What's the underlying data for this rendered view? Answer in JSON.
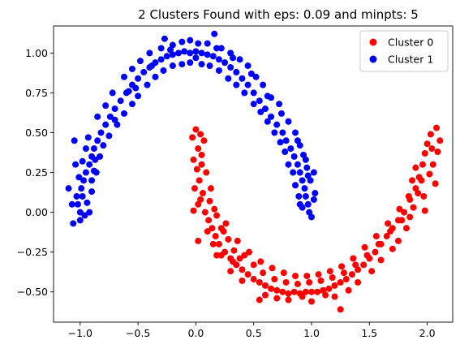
{
  "chart_data": {
    "type": "scatter",
    "title": "2 Clusters Found with eps: 0.09 and minpts: 5",
    "xlabel": "",
    "ylabel": "",
    "xlim": [
      -1.23,
      2.22
    ],
    "ylim": [
      -0.69,
      1.17
    ],
    "xticks": [
      -1.0,
      -0.5,
      0.0,
      0.5,
      1.0,
      1.5,
      2.0
    ],
    "xtick_labels": [
      "−1.0",
      "−0.5",
      "0.0",
      "0.5",
      "1.0",
      "1.5",
      "2.0"
    ],
    "yticks": [
      -0.5,
      -0.25,
      0.0,
      0.25,
      0.5,
      0.75,
      1.0
    ],
    "ytick_labels": [
      "−0.50",
      "−0.25",
      "0.00",
      "0.25",
      "0.50",
      "0.75",
      "1.00"
    ],
    "grid": false,
    "legend_position": "top-right",
    "series": [
      {
        "name": "Cluster 0",
        "color": "#ff0000",
        "points": [
          [
            0.0,
            0.52
          ],
          [
            0.04,
            0.49
          ],
          [
            0.02,
            0.4
          ],
          [
            -0.02,
            0.33
          ],
          [
            0.05,
            0.3
          ],
          [
            0.03,
            0.2
          ],
          [
            0.06,
            0.12
          ],
          [
            0.02,
            0.05
          ],
          [
            0.08,
            0.0
          ],
          [
            0.11,
            -0.05
          ],
          [
            0.14,
            -0.1
          ],
          [
            0.17,
            -0.15
          ],
          [
            0.2,
            -0.2
          ],
          [
            0.25,
            -0.25
          ],
          [
            0.3,
            -0.29
          ],
          [
            0.35,
            -0.33
          ],
          [
            0.4,
            -0.36
          ],
          [
            0.45,
            -0.39
          ],
          [
            0.5,
            -0.42
          ],
          [
            0.55,
            -0.44
          ],
          [
            0.6,
            -0.46
          ],
          [
            0.65,
            -0.48
          ],
          [
            0.7,
            -0.49
          ],
          [
            0.75,
            -0.5
          ],
          [
            0.8,
            -0.51
          ],
          [
            0.85,
            -0.5
          ],
          [
            0.9,
            -0.51
          ],
          [
            0.95,
            -0.5
          ],
          [
            1.0,
            -0.5
          ],
          [
            1.05,
            -0.5
          ],
          [
            1.1,
            -0.49
          ],
          [
            1.15,
            -0.48
          ],
          [
            1.2,
            -0.46
          ],
          [
            1.25,
            -0.44
          ],
          [
            1.3,
            -0.42
          ],
          [
            1.35,
            -0.39
          ],
          [
            1.4,
            -0.36
          ],
          [
            1.45,
            -0.33
          ],
          [
            1.5,
            -0.29
          ],
          [
            1.55,
            -0.25
          ],
          [
            1.6,
            -0.2
          ],
          [
            1.65,
            -0.15
          ],
          [
            1.7,
            -0.1
          ],
          [
            1.75,
            -0.05
          ],
          [
            1.8,
            0.0
          ],
          [
            1.85,
            0.08
          ],
          [
            1.9,
            0.15
          ],
          [
            1.93,
            0.22
          ],
          [
            1.96,
            0.3
          ],
          [
            1.98,
            0.37
          ],
          [
            2.0,
            0.43
          ],
          [
            2.03,
            0.49
          ],
          [
            2.08,
            0.53
          ],
          [
            2.11,
            0.45
          ],
          [
            2.05,
            0.3
          ],
          [
            0.07,
            0.45
          ],
          [
            -0.03,
            0.47
          ],
          [
            0.09,
            0.25
          ],
          [
            -0.01,
            0.15
          ],
          [
            0.12,
            0.07
          ],
          [
            0.18,
            -0.02
          ],
          [
            0.22,
            -0.1
          ],
          [
            0.28,
            -0.17
          ],
          [
            0.33,
            -0.24
          ],
          [
            0.42,
            -0.27
          ],
          [
            0.5,
            -0.33
          ],
          [
            0.58,
            -0.38
          ],
          [
            0.68,
            -0.42
          ],
          [
            0.78,
            -0.44
          ],
          [
            0.88,
            -0.45
          ],
          [
            0.98,
            -0.44
          ],
          [
            1.08,
            -0.43
          ],
          [
            1.18,
            -0.41
          ],
          [
            1.28,
            -0.38
          ],
          [
            1.38,
            -0.33
          ],
          [
            1.48,
            -0.27
          ],
          [
            1.58,
            -0.2
          ],
          [
            1.68,
            -0.12
          ],
          [
            1.78,
            -0.05
          ],
          [
            1.88,
            0.03
          ],
          [
            1.92,
            0.12
          ],
          [
            1.95,
            0.2
          ],
          [
            2.02,
            0.24
          ],
          [
            2.07,
            0.18
          ],
          [
            2.09,
            0.38
          ],
          [
            0.15,
            -0.2
          ],
          [
            0.1,
            -0.12
          ],
          [
            0.22,
            -0.27
          ],
          [
            0.4,
            -0.43
          ],
          [
            0.6,
            -0.52
          ],
          [
            0.8,
            -0.55
          ],
          [
            1.0,
            -0.56
          ],
          [
            1.2,
            -0.53
          ],
          [
            1.25,
            -0.61
          ],
          [
            1.4,
            -0.44
          ],
          [
            1.6,
            -0.3
          ],
          [
            1.75,
            -0.18
          ],
          [
            1.82,
            -0.1
          ],
          [
            0.55,
            -0.55
          ],
          [
            0.3,
            -0.37
          ],
          [
            0.05,
            0.36
          ],
          [
            0.01,
            0.27
          ],
          [
            0.13,
            0.15
          ],
          [
            0.04,
            0.08
          ],
          [
            -0.02,
            0.01
          ],
          [
            0.16,
            0.02
          ],
          [
            0.26,
            -0.07
          ],
          [
            0.36,
            -0.18
          ],
          [
            0.46,
            -0.25
          ],
          [
            0.56,
            -0.31
          ],
          [
            0.66,
            -0.35
          ],
          [
            0.76,
            -0.38
          ],
          [
            0.86,
            -0.4
          ],
          [
            0.96,
            -0.4
          ],
          [
            1.06,
            -0.39
          ],
          [
            1.16,
            -0.37
          ],
          [
            1.26,
            -0.34
          ],
          [
            1.36,
            -0.29
          ],
          [
            1.46,
            -0.22
          ],
          [
            1.56,
            -0.15
          ],
          [
            1.66,
            -0.07
          ],
          [
            1.76,
            0.02
          ],
          [
            1.84,
            0.1
          ],
          [
            1.87,
            0.2
          ],
          [
            1.9,
            0.28
          ],
          [
            1.97,
            0.1
          ],
          [
            2.04,
            0.4
          ],
          [
            0.18,
            -0.27
          ],
          [
            0.02,
            -0.18
          ],
          [
            0.38,
            -0.29
          ],
          [
            0.7,
            -0.54
          ],
          [
            0.92,
            -0.53
          ],
          [
            1.12,
            -0.52
          ],
          [
            1.32,
            -0.49
          ],
          [
            1.52,
            -0.37
          ],
          [
            1.7,
            -0.23
          ],
          [
            1.85,
            -0.03
          ],
          [
            1.98,
            0.01
          ],
          [
            0.24,
            -0.12
          ],
          [
            0.32,
            -0.31
          ]
        ]
      },
      {
        "name": "Cluster 1",
        "color": "#0000ff",
        "points": [
          [
            -1.0,
            0.0
          ],
          [
            -1.02,
            0.05
          ],
          [
            -0.98,
            0.1
          ],
          [
            -0.99,
            0.15
          ],
          [
            -0.97,
            0.2
          ],
          [
            -0.95,
            0.25
          ],
          [
            -0.92,
            0.3
          ],
          [
            -0.9,
            0.35
          ],
          [
            -0.88,
            0.4
          ],
          [
            -0.85,
            0.45
          ],
          [
            -0.82,
            0.5
          ],
          [
            -0.78,
            0.55
          ],
          [
            -0.74,
            0.6
          ],
          [
            -0.7,
            0.65
          ],
          [
            -0.65,
            0.7
          ],
          [
            -0.6,
            0.75
          ],
          [
            -0.55,
            0.8
          ],
          [
            -0.5,
            0.84
          ],
          [
            -0.45,
            0.88
          ],
          [
            -0.4,
            0.91
          ],
          [
            -0.35,
            0.94
          ],
          [
            -0.3,
            0.96
          ],
          [
            -0.25,
            0.98
          ],
          [
            -0.2,
            0.99
          ],
          [
            -0.15,
            1.0
          ],
          [
            -0.1,
            1.01
          ],
          [
            -0.05,
            1.0
          ],
          [
            0.0,
            1.01
          ],
          [
            0.05,
            1.0
          ],
          [
            0.1,
            0.99
          ],
          [
            0.15,
            0.98
          ],
          [
            0.2,
            0.96
          ],
          [
            0.25,
            0.94
          ],
          [
            0.3,
            0.91
          ],
          [
            0.35,
            0.88
          ],
          [
            0.4,
            0.84
          ],
          [
            0.45,
            0.8
          ],
          [
            0.5,
            0.75
          ],
          [
            0.55,
            0.7
          ],
          [
            0.6,
            0.65
          ],
          [
            0.65,
            0.6
          ],
          [
            0.7,
            0.55
          ],
          [
            0.75,
            0.5
          ],
          [
            0.78,
            0.45
          ],
          [
            0.82,
            0.4
          ],
          [
            0.85,
            0.35
          ],
          [
            0.88,
            0.3
          ],
          [
            0.9,
            0.25
          ],
          [
            0.92,
            0.2
          ],
          [
            0.94,
            0.15
          ],
          [
            0.95,
            0.1
          ],
          [
            0.97,
            0.05
          ],
          [
            0.98,
            0.0
          ],
          [
            1.0,
            -0.03
          ],
          [
            1.03,
            0.12
          ],
          [
            -1.05,
            0.45
          ],
          [
            -1.1,
            0.15
          ],
          [
            -1.06,
            -0.07
          ],
          [
            -0.96,
            -0.02
          ],
          [
            -1.04,
            0.3
          ],
          [
            -0.93,
            0.47
          ],
          [
            -0.85,
            0.6
          ],
          [
            -0.78,
            0.67
          ],
          [
            -0.72,
            0.75
          ],
          [
            -0.62,
            0.85
          ],
          [
            -0.55,
            0.9
          ],
          [
            -0.48,
            0.95
          ],
          [
            -0.4,
            1.0
          ],
          [
            -0.3,
            1.03
          ],
          [
            -0.27,
            1.09
          ],
          [
            -0.2,
            1.05
          ],
          [
            -0.12,
            1.07
          ],
          [
            -0.05,
            1.08
          ],
          [
            0.02,
            1.06
          ],
          [
            0.1,
            1.06
          ],
          [
            0.16,
            1.12
          ],
          [
            0.22,
            1.03
          ],
          [
            0.3,
            1.0
          ],
          [
            0.38,
            0.96
          ],
          [
            0.45,
            0.92
          ],
          [
            0.52,
            0.85
          ],
          [
            0.58,
            0.8
          ],
          [
            0.65,
            0.72
          ],
          [
            0.72,
            0.68
          ],
          [
            0.8,
            0.57
          ],
          [
            0.86,
            0.5
          ],
          [
            0.9,
            0.42
          ],
          [
            0.95,
            0.33
          ],
          [
            0.97,
            0.23
          ],
          [
            1.02,
            0.25
          ],
          [
            -0.9,
            0.2
          ],
          [
            -0.86,
            0.25
          ],
          [
            -0.83,
            0.35
          ],
          [
            -0.8,
            0.42
          ],
          [
            -0.75,
            0.48
          ],
          [
            -0.68,
            0.55
          ],
          [
            -0.62,
            0.62
          ],
          [
            -0.55,
            0.68
          ],
          [
            -0.5,
            0.73
          ],
          [
            -0.42,
            0.8
          ],
          [
            -0.35,
            0.85
          ],
          [
            -0.28,
            0.89
          ],
          [
            -0.2,
            0.92
          ],
          [
            -0.12,
            0.93
          ],
          [
            -0.05,
            0.94
          ],
          [
            0.05,
            0.93
          ],
          [
            0.12,
            0.92
          ],
          [
            0.2,
            0.89
          ],
          [
            0.28,
            0.84
          ],
          [
            0.35,
            0.8
          ],
          [
            0.42,
            0.75
          ],
          [
            0.5,
            0.68
          ],
          [
            0.56,
            0.63
          ],
          [
            0.62,
            0.57
          ],
          [
            0.68,
            0.5
          ],
          [
            0.73,
            0.44
          ],
          [
            0.77,
            0.38
          ],
          [
            0.8,
            0.3
          ],
          [
            0.84,
            0.25
          ],
          [
            0.86,
            0.17
          ],
          [
            0.89,
            0.1
          ],
          [
            0.92,
            0.03
          ],
          [
            -0.95,
            0.4
          ],
          [
            -0.98,
            0.32
          ],
          [
            -1.01,
            0.22
          ],
          [
            -1.03,
            0.1
          ],
          [
            -0.94,
            0.06
          ],
          [
            -0.9,
            0.13
          ],
          [
            -0.88,
            0.26
          ],
          [
            -0.7,
            0.58
          ],
          [
            -0.58,
            0.76
          ],
          [
            -0.52,
            0.78
          ],
          [
            -0.38,
            0.92
          ],
          [
            -0.22,
            1.02
          ],
          [
            0.0,
            0.97
          ],
          [
            0.18,
            1.03
          ],
          [
            0.32,
            0.97
          ],
          [
            0.48,
            0.87
          ],
          [
            0.62,
            0.73
          ],
          [
            0.74,
            0.62
          ],
          [
            0.88,
            0.45
          ],
          [
            0.93,
            0.36
          ],
          [
            0.96,
            0.28
          ],
          [
            0.99,
            0.2
          ],
          [
            1.02,
            0.08
          ],
          [
            0.9,
            0.05
          ],
          [
            -1.07,
            0.05
          ],
          [
            -1.0,
            -0.05
          ],
          [
            -0.92,
            0.0
          ],
          [
            -0.87,
            0.33
          ]
        ]
      }
    ]
  }
}
